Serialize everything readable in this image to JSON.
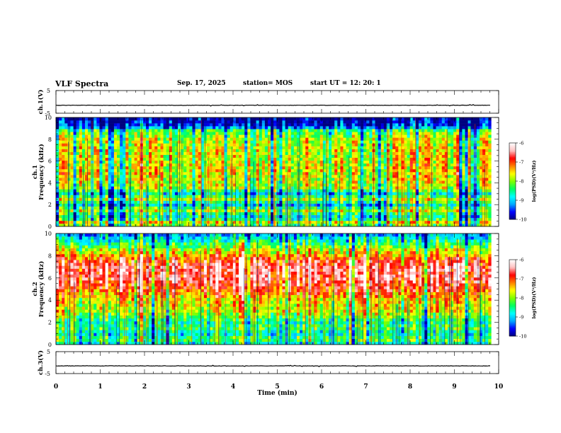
{
  "header": {
    "title": "VLF Spectra",
    "date": "Sep. 17, 2025",
    "station": "station= MOS",
    "start": "start  UT  =    12: 20: 1"
  },
  "chart_data": [
    {
      "type": "line",
      "name": "ch1-waveform",
      "ylabel": "ch.1(V)",
      "ylim": [
        -5,
        5
      ],
      "yticks": [
        "5",
        "-5"
      ],
      "level": -1.5,
      "x_end_min": 9.83
    },
    {
      "type": "heatmap",
      "name": "ch1-spectrogram",
      "ylabel": "ch.1\nFrequency (kHz)",
      "ylabel_line1": "ch.1",
      "ylabel_line2": "Frequency (kHz)",
      "ylim": [
        0,
        10
      ],
      "yticks": [
        "0",
        "2",
        "4",
        "6",
        "8",
        "10"
      ],
      "x_end_min": 9.83,
      "profile": [
        {
          "f": 0.0,
          "v": -8.6
        },
        {
          "f": 0.3,
          "v": -7.4
        },
        {
          "f": 0.8,
          "v": -8.8
        },
        {
          "f": 1.2,
          "v": -8.4
        },
        {
          "f": 1.5,
          "v": -7.8
        },
        {
          "f": 2.0,
          "v": -9.0
        },
        {
          "f": 2.5,
          "v": -7.8
        },
        {
          "f": 3.0,
          "v": -8.9
        },
        {
          "f": 3.5,
          "v": -7.9
        },
        {
          "f": 5.0,
          "v": -7.6
        },
        {
          "f": 6.5,
          "v": -7.7
        },
        {
          "f": 8.0,
          "v": -7.8
        },
        {
          "f": 8.8,
          "v": -8.3
        },
        {
          "f": 9.2,
          "v": -9.6
        },
        {
          "f": 10.0,
          "v": -9.9
        }
      ]
    },
    {
      "type": "heatmap",
      "name": "ch2-spectrogram",
      "ylabel": "ch.2\nFrequency (kHz)",
      "ylabel_line1": "ch.2",
      "ylabel_line2": "Frequency (kHz)",
      "ylim": [
        0,
        10
      ],
      "yticks": [
        "0",
        "2",
        "4",
        "6",
        "8",
        "10"
      ],
      "x_end_min": 9.83,
      "profile": [
        {
          "f": 0.0,
          "v": -9.0
        },
        {
          "f": 0.5,
          "v": -8.2
        },
        {
          "f": 1.0,
          "v": -8.9
        },
        {
          "f": 1.5,
          "v": -8.3
        },
        {
          "f": 2.0,
          "v": -8.6
        },
        {
          "f": 3.0,
          "v": -7.8
        },
        {
          "f": 4.0,
          "v": -7.6
        },
        {
          "f": 5.0,
          "v": -7.0
        },
        {
          "f": 6.0,
          "v": -6.6
        },
        {
          "f": 7.0,
          "v": -6.6
        },
        {
          "f": 7.6,
          "v": -6.9
        },
        {
          "f": 8.3,
          "v": -7.6
        },
        {
          "f": 9.0,
          "v": -8.3
        },
        {
          "f": 9.6,
          "v": -8.9
        },
        {
          "f": 10.0,
          "v": -9.3
        }
      ]
    },
    {
      "type": "line",
      "name": "ch3-waveform",
      "ylabel": "ch.3(V)",
      "ylim": [
        -5,
        5
      ],
      "yticks": [
        "5",
        "-5"
      ],
      "level": -1.5,
      "x_end_min": 9.83
    }
  ],
  "xaxis": {
    "label": "Time  (min)",
    "range": [
      0,
      10
    ],
    "ticks": [
      "0",
      "1",
      "2",
      "3",
      "4",
      "5",
      "6",
      "7",
      "8",
      "9",
      "10"
    ]
  },
  "colorbar": {
    "label": "log(PSD)(V²/Hz)",
    "range": [
      -10,
      -6
    ],
    "ticks": [
      "-6",
      "-7",
      "-8",
      "-9",
      "-10"
    ],
    "stops": [
      "#000080",
      "#0000ff",
      "#00aaff",
      "#00ffff",
      "#00ff60",
      "#80ff00",
      "#ffff00",
      "#ff8000",
      "#ff0000",
      "#ffc0c0",
      "#ffffff"
    ]
  }
}
